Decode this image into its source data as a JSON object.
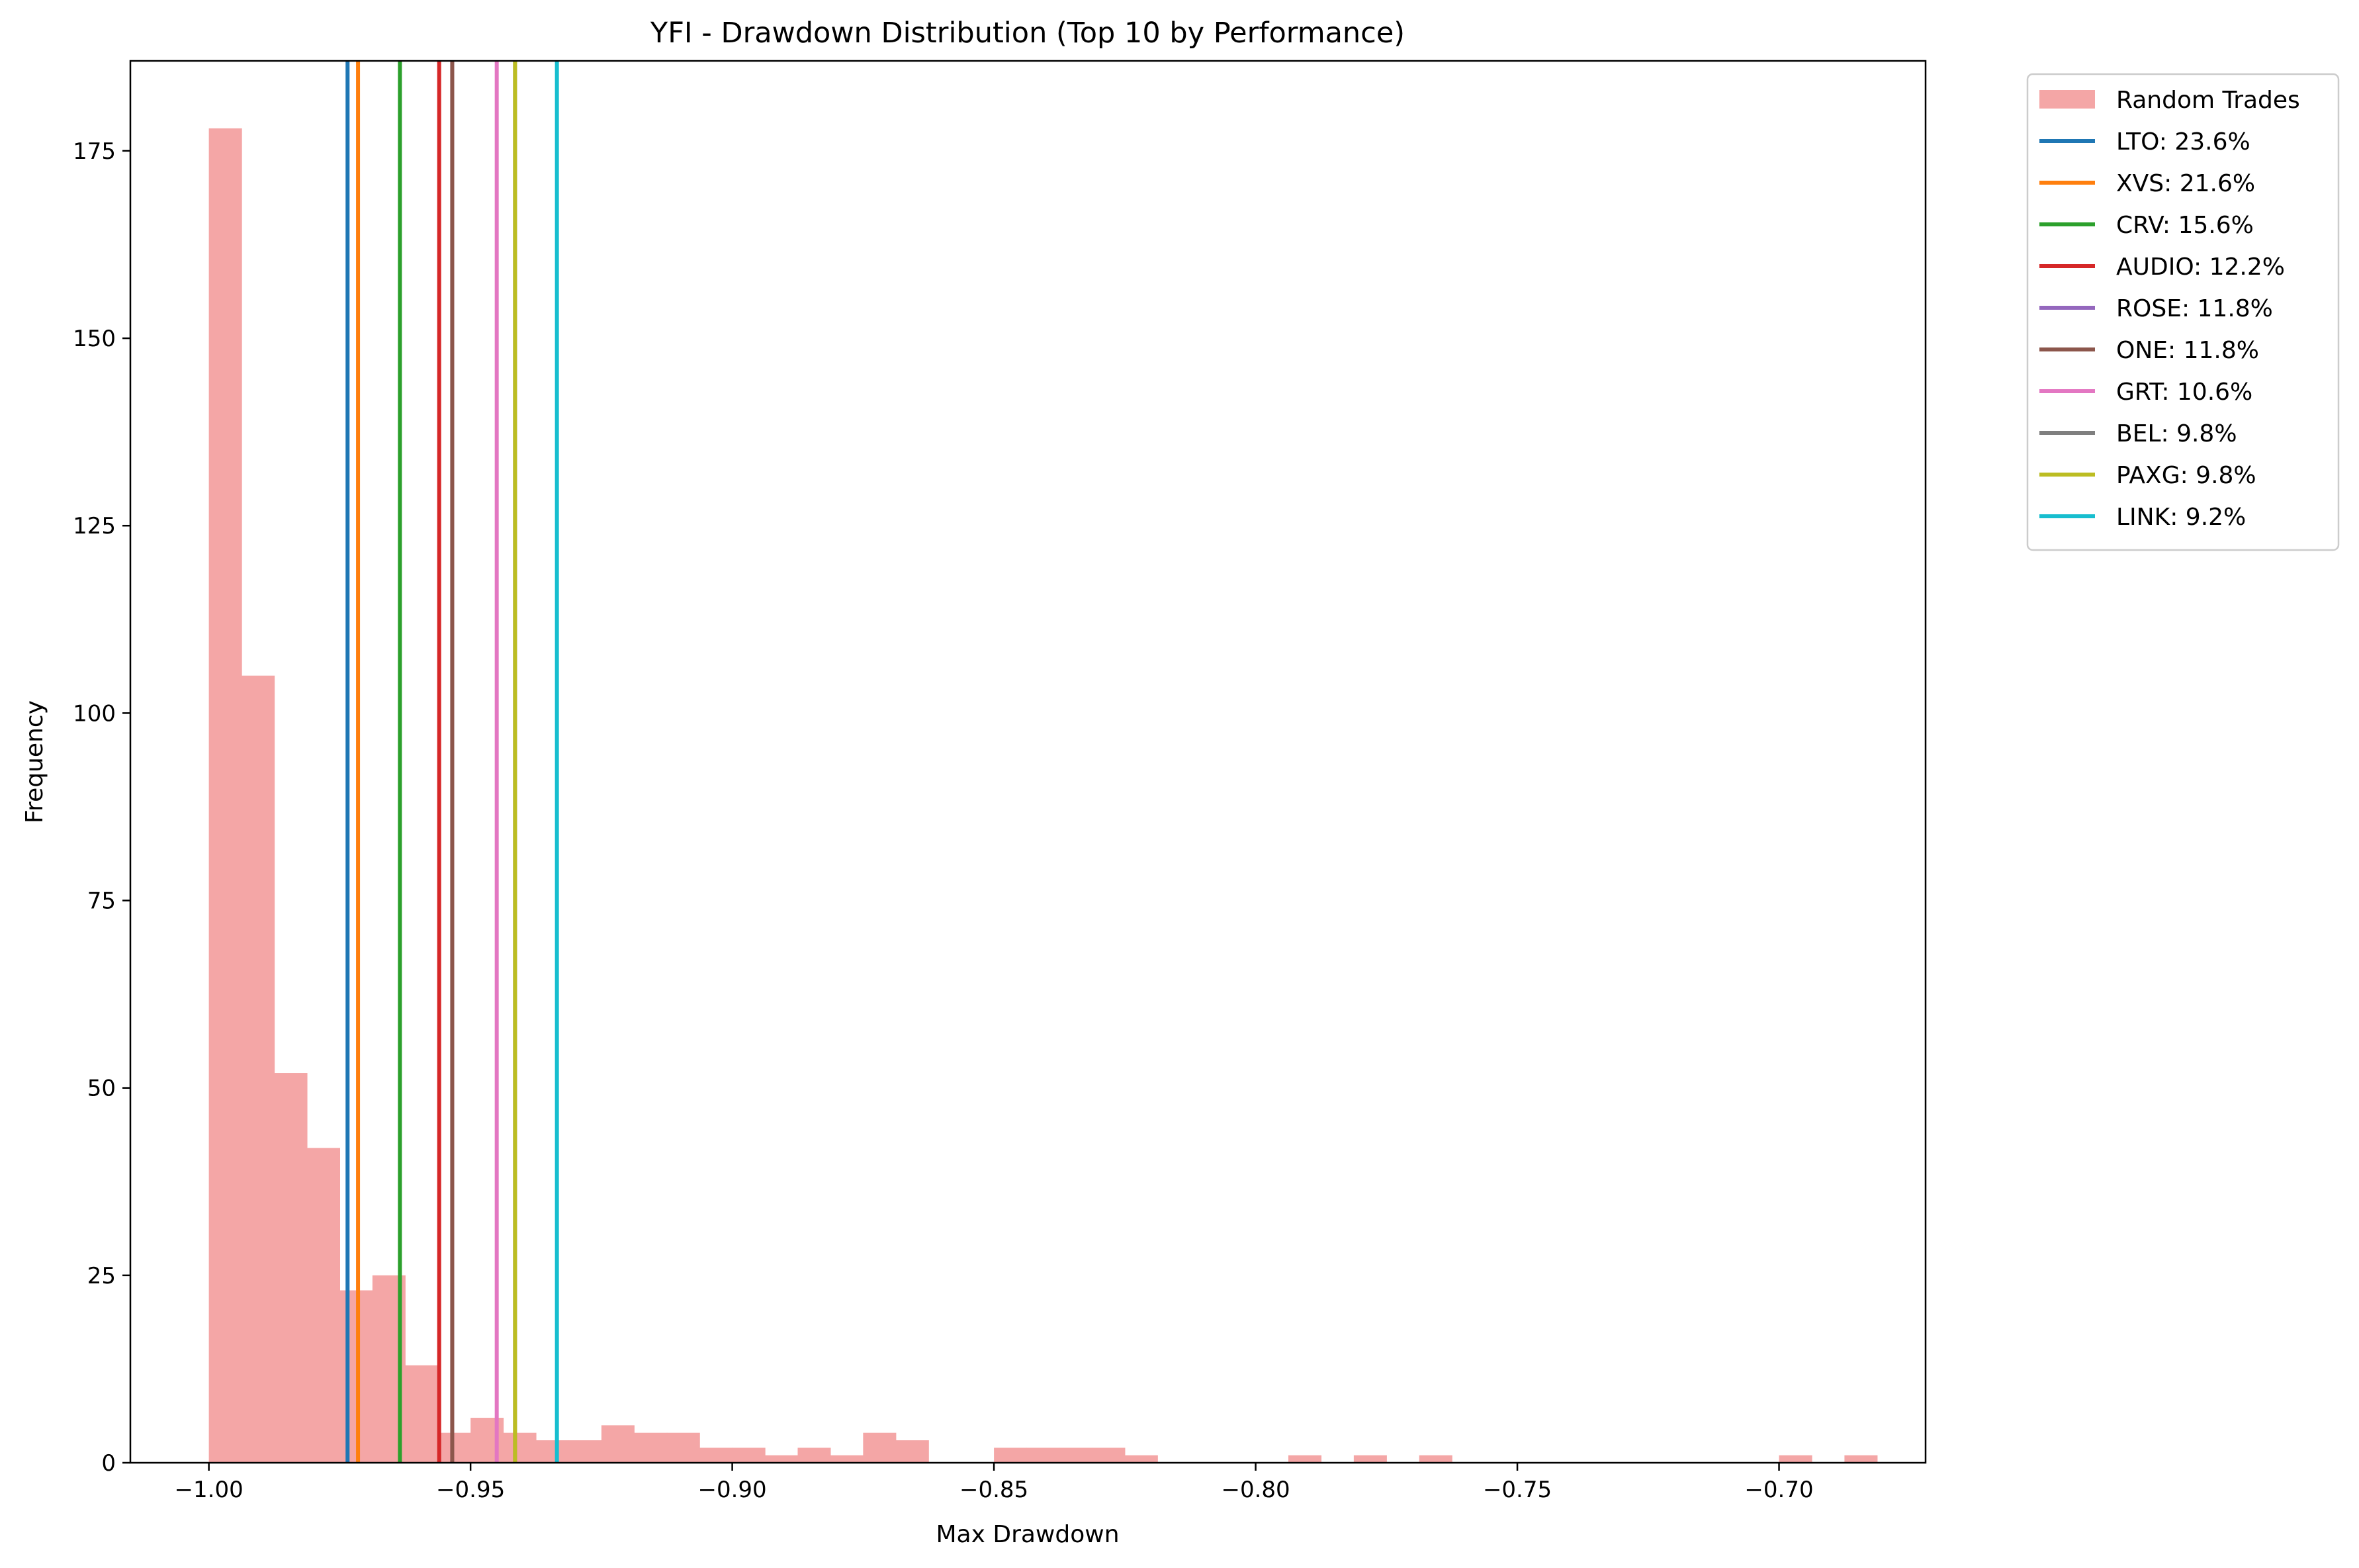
{
  "chart_data": {
    "type": "bar",
    "subtype": "histogram with vertical reference lines",
    "title": "YFI - Drawdown Distribution (Top 10 by Performance)",
    "xlabel": "Max Drawdown",
    "ylabel": "Frequency",
    "xlim": [
      -1.015,
      -0.672
    ],
    "ylim": [
      0,
      187
    ],
    "xticks": [
      -1.0,
      -0.95,
      -0.9,
      -0.85,
      -0.8,
      -0.75,
      -0.7
    ],
    "xtick_labels": [
      "−1.00",
      "−0.95",
      "−0.90",
      "−0.85",
      "−0.80",
      "−0.75",
      "−0.70"
    ],
    "yticks": [
      0,
      25,
      50,
      75,
      100,
      125,
      150,
      175
    ],
    "ytick_labels": [
      "0",
      "25",
      "50",
      "75",
      "100",
      "125",
      "150",
      "175"
    ],
    "grid": false,
    "legend_position": "outside-top-right",
    "histogram": {
      "name": "Random Trades",
      "color": "#f4a6a6",
      "bin_start": -1.0,
      "bin_width": 0.00625,
      "counts": [
        178,
        105,
        52,
        42,
        23,
        25,
        13,
        4,
        6,
        4,
        3,
        3,
        5,
        4,
        4,
        2,
        2,
        1,
        2,
        1,
        4,
        3,
        0,
        0,
        2,
        2,
        2,
        2,
        1,
        0,
        0,
        0,
        0,
        1,
        0,
        1,
        0,
        1,
        0,
        0,
        0,
        0,
        0,
        0,
        0,
        0,
        0,
        0,
        1,
        0,
        1
      ]
    },
    "series": [
      {
        "name": "LTO: 23.6%",
        "x": -0.9735,
        "color": "#1f77b4"
      },
      {
        "name": "XVS: 21.6%",
        "x": -0.9715,
        "color": "#ff7f0e"
      },
      {
        "name": "CRV: 15.6%",
        "x": -0.9635,
        "color": "#2ca02c"
      },
      {
        "name": "AUDIO: 12.2%",
        "x": -0.956,
        "color": "#d62728"
      },
      {
        "name": "ROSE: 11.8%",
        "x": -0.9535,
        "color": "#9467bd"
      },
      {
        "name": "ONE: 11.8%",
        "x": -0.9535,
        "color": "#8c564b"
      },
      {
        "name": "GRT: 10.6%",
        "x": -0.945,
        "color": "#e377c2"
      },
      {
        "name": "BEL: 9.8%",
        "x": -0.9415,
        "color": "#7f7f7f"
      },
      {
        "name": "PAXG: 9.8%",
        "x": -0.9415,
        "color": "#bcbd22"
      },
      {
        "name": "LINK: 9.2%",
        "x": -0.9335,
        "color": "#17becf"
      }
    ]
  }
}
